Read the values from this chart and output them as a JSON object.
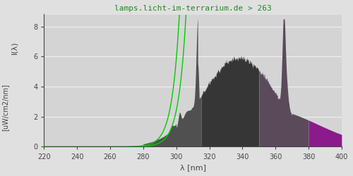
{
  "title": "lamps.licht-im-terrarium.de > 263",
  "title_color": "#228822",
  "xlabel": "λ [nm]",
  "ylabel": "I(λ)  [uW/cm2/nm]",
  "xmin": 220,
  "xmax": 400,
  "ymin": 0,
  "ymax": 8.8,
  "yticks": [
    0,
    2,
    4,
    6,
    8
  ],
  "xticks": [
    220,
    240,
    260,
    280,
    300,
    320,
    340,
    360,
    380,
    400
  ],
  "bg_color": "#e0e0e0",
  "plot_bg_color": "#d4d4d4",
  "grid_color": "#f0f0f0",
  "color_uvb": "#505050",
  "color_uva1": "#363636",
  "color_uva2": "#5a4a5a",
  "color_vis": "#8B1A8B",
  "green_line_color": "#00cc00",
  "font_color": "#444444",
  "bound1": 315,
  "bound2": 350,
  "bound3": 380
}
